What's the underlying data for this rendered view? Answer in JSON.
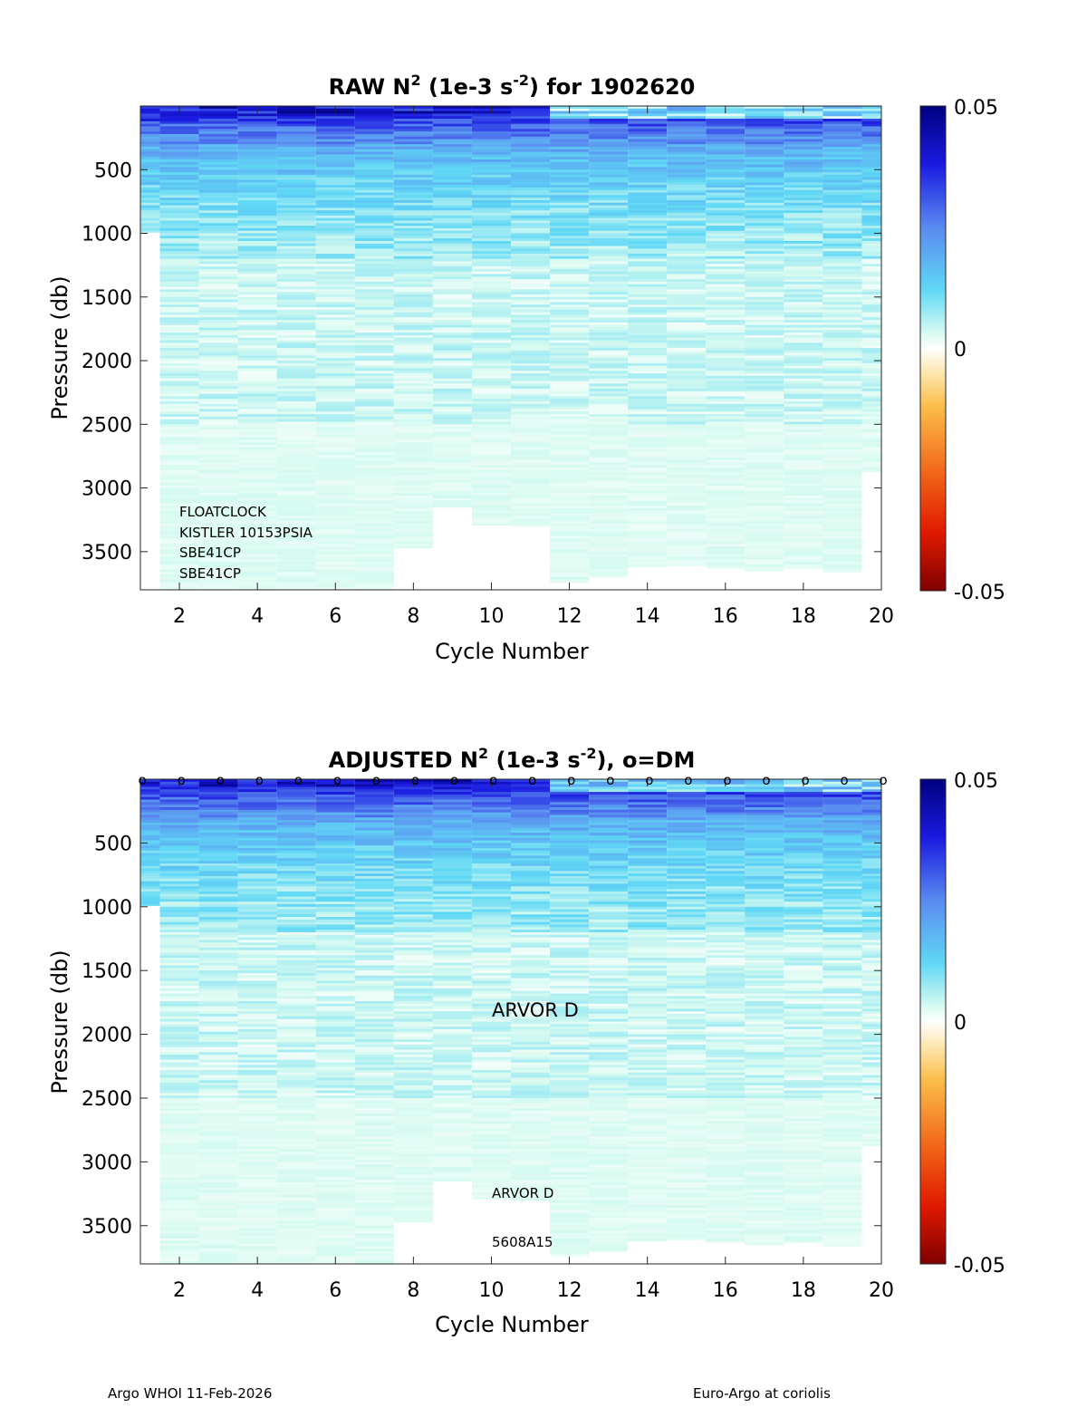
{
  "chart_data": [
    {
      "type": "heatmap",
      "title": {
        "pre": "RAW N",
        "sup1": "2",
        "mid": " (1e-3 s",
        "sup2": "-2",
        "post": ") for 1902620"
      },
      "xlabel": "Cycle Number",
      "ylabel": "Pressure (db)",
      "xlim": [
        1,
        20
      ],
      "ylim": [
        3800,
        0
      ],
      "xticks": [
        "2",
        "4",
        "6",
        "8",
        "10",
        "12",
        "14",
        "16",
        "18",
        "20"
      ],
      "yticks": [
        "500",
        "1000",
        "1500",
        "2000",
        "2500",
        "3000",
        "3500"
      ],
      "colorbar": {
        "min": -0.05,
        "max": 0.05,
        "tick_labels": [
          "0.05",
          "0",
          "-0.05"
        ],
        "colormap": "jet-like with white at 0"
      },
      "cycles": [
        1,
        2,
        3,
        4,
        5,
        6,
        7,
        8,
        9,
        10,
        11,
        12,
        13,
        14,
        15,
        16,
        17,
        18,
        19,
        20
      ],
      "max_pressure_per_cycle": [
        990,
        3800,
        3800,
        3800,
        3800,
        3800,
        3800,
        3470,
        3150,
        3290,
        3300,
        3740,
        3700,
        3620,
        3610,
        3630,
        3650,
        3630,
        3660,
        2870
      ],
      "annotations": [
        "FLOATCLOCK",
        "KISTLER 10153PSIA",
        "SBE41CP",
        "SBE41CP"
      ]
    },
    {
      "type": "heatmap",
      "title": {
        "pre": "ADJUSTED N",
        "sup1": "2",
        "mid": " (1e-3 s",
        "sup2": "-2",
        "post": "), o=DM"
      },
      "xlabel": "Cycle Number",
      "ylabel": "Pressure (db)",
      "xlim": [
        1,
        20
      ],
      "ylim": [
        3800,
        0
      ],
      "xticks": [
        "2",
        "4",
        "6",
        "8",
        "10",
        "12",
        "14",
        "16",
        "18",
        "20"
      ],
      "yticks": [
        "500",
        "1000",
        "1500",
        "2000",
        "2500",
        "3000",
        "3500"
      ],
      "colorbar": {
        "min": -0.05,
        "max": 0.05,
        "tick_labels": [
          "0.05",
          "0",
          "-0.05"
        ],
        "colormap": "jet-like with white at 0"
      },
      "cycles": [
        1,
        2,
        3,
        4,
        5,
        6,
        7,
        8,
        9,
        10,
        11,
        12,
        13,
        14,
        15,
        16,
        17,
        18,
        19,
        20
      ],
      "max_pressure_per_cycle": [
        990,
        3800,
        3800,
        3800,
        3800,
        3800,
        3800,
        3470,
        3150,
        3290,
        3300,
        3740,
        3700,
        3620,
        3610,
        3630,
        3650,
        3630,
        3660,
        2870
      ],
      "dm_marker": "o",
      "dm_cycles": [
        1,
        2,
        3,
        4,
        5,
        6,
        7,
        8,
        9,
        10,
        11,
        12,
        13,
        14,
        15,
        16,
        17,
        18,
        19,
        20
      ],
      "annotations": [
        "ARVOR D",
        "ARVOR D",
        "5608A15"
      ]
    }
  ],
  "footer": {
    "left": "Argo WHOI 11-Feb-2026",
    "right": "Euro-Argo at coriolis"
  }
}
